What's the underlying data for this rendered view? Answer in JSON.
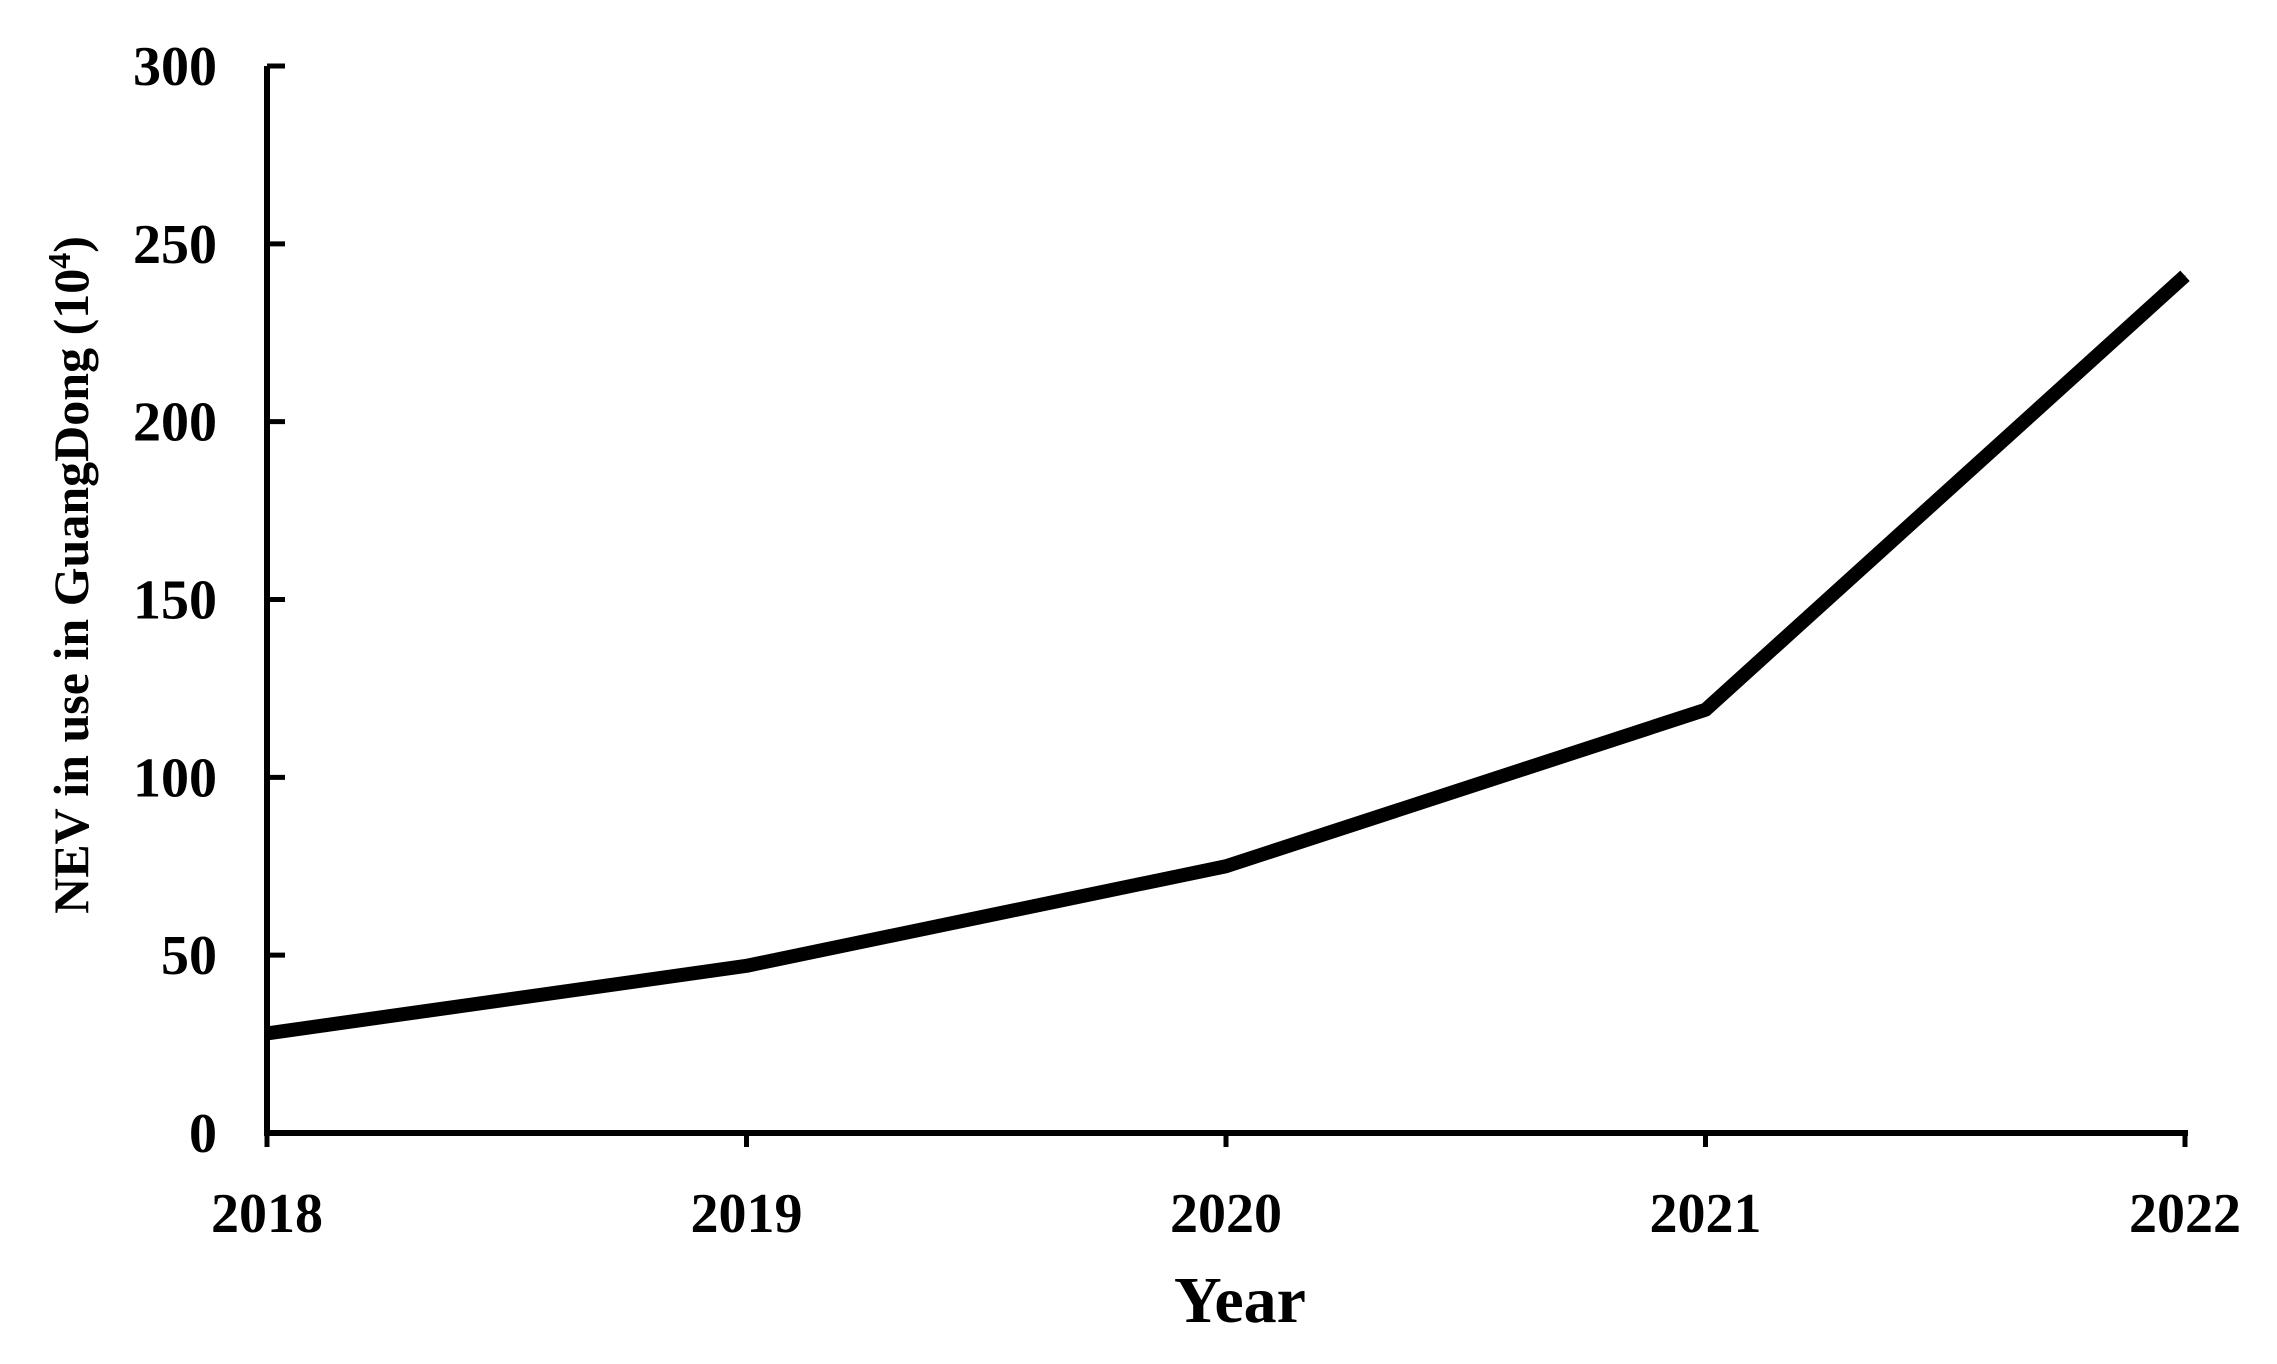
{
  "chart_data": {
    "type": "line",
    "title": "",
    "xlabel": "Year",
    "ylabel": "NEV in use in GuangDong (10",
    "ylabel_superscript": "4",
    "ylabel_suffix": ")",
    "categories": [
      "2018",
      "2019",
      "2020",
      "2021",
      "2022"
    ],
    "y_ticks": [
      "0",
      "50",
      "100",
      "150",
      "200",
      "250",
      "300"
    ],
    "ylim": [
      0,
      300
    ],
    "grid": false,
    "legend": "none",
    "series": [
      {
        "values": [
          28,
          47,
          75,
          119,
          241
        ],
        "color": "#000000"
      }
    ]
  }
}
